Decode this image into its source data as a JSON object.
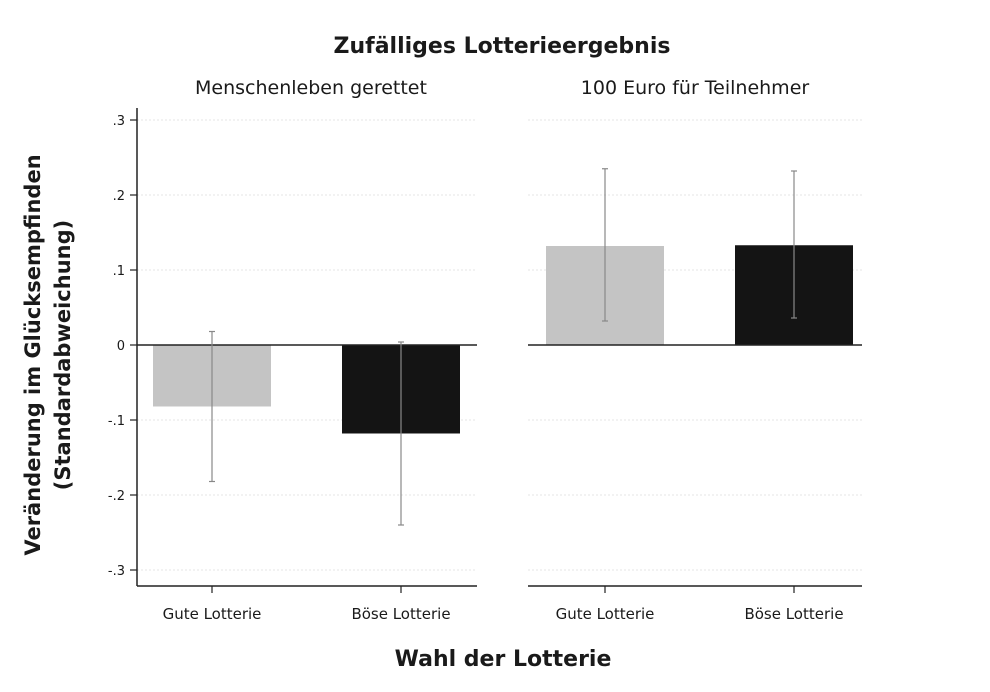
{
  "chart_data": {
    "type": "bar",
    "title": "Zufälliges Lotterieergebnis",
    "xlabel": "Wahl der Lotterie",
    "ylabel_lines": [
      "Veränderung im Glücksempfinden",
      "(Standardabweichung)"
    ],
    "ylim": [
      -0.3,
      0.3
    ],
    "yticks": [
      0.3,
      0.2,
      0.1,
      0,
      -0.1,
      -0.2,
      -0.3
    ],
    "ytick_labels": [
      ".3",
      ".2",
      ".1",
      "0",
      "-.1",
      "-.2",
      "-.3"
    ],
    "grid": true,
    "categories": [
      "Gute Lotterie",
      "Böse Lotterie"
    ],
    "bar_colors": [
      "#c4c4c4",
      "#141414"
    ],
    "panels": [
      {
        "title": "Menschenleben gerettet",
        "values": [
          -0.082,
          -0.118
        ],
        "error_low": [
          -0.182,
          -0.24
        ],
        "error_high": [
          0.018,
          0.004
        ]
      },
      {
        "title": "100 Euro für Teilnehmer",
        "values": [
          0.132,
          0.133
        ],
        "error_low": [
          0.032,
          0.036
        ],
        "error_high": [
          0.235,
          0.232
        ]
      }
    ]
  }
}
